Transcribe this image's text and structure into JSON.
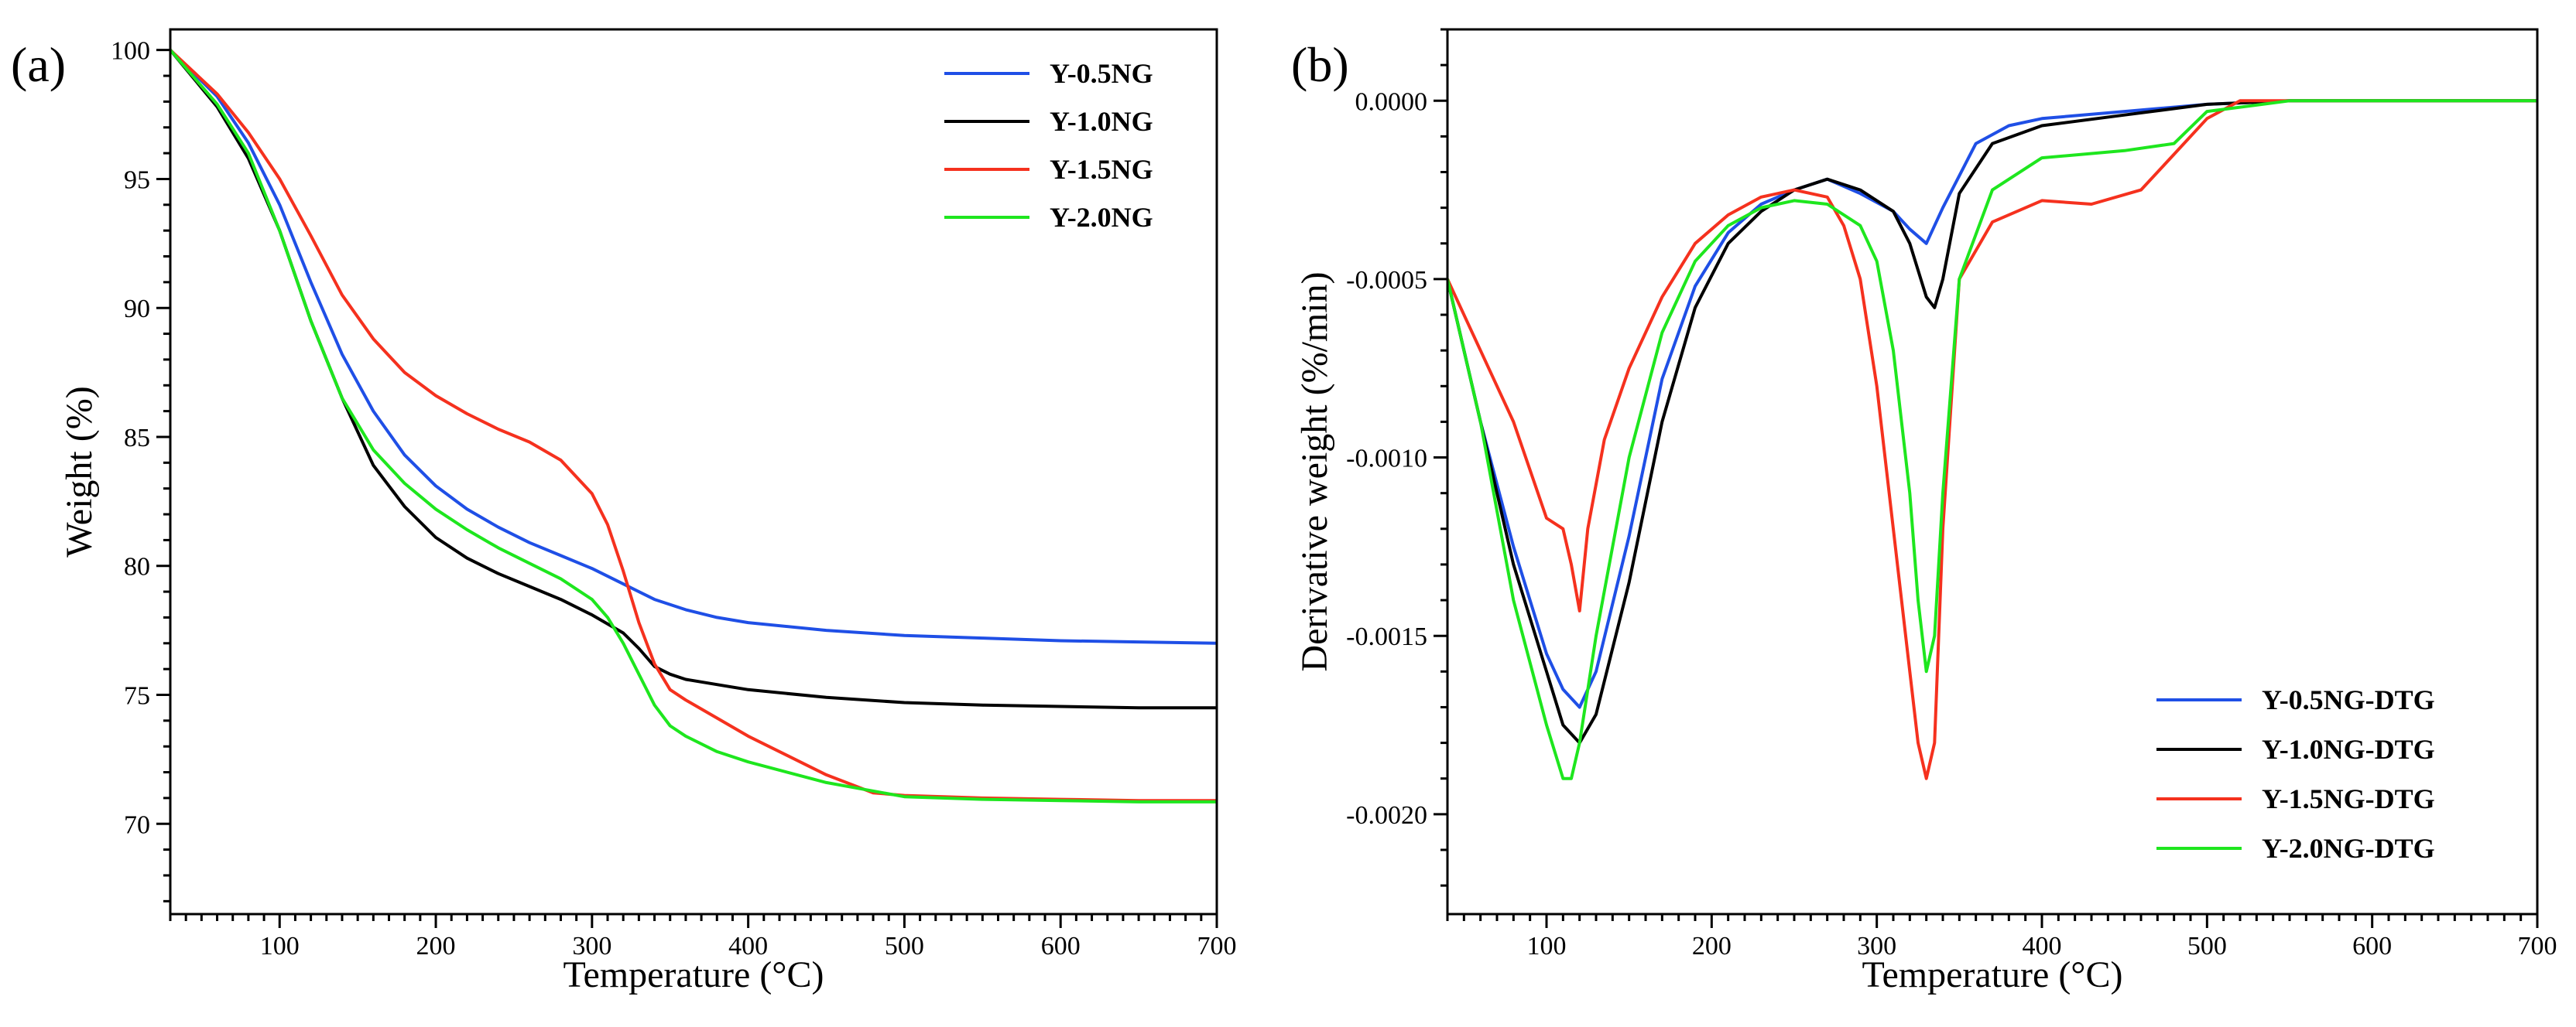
{
  "chart_data": [
    {
      "type": "line",
      "panel_label": "(a)",
      "xlabel": "Temperature (°C)",
      "ylabel": "Weight (%)",
      "xlim": [
        30,
        700
      ],
      "ylim": [
        66.5,
        100.8
      ],
      "xticks": [
        100,
        200,
        300,
        400,
        500,
        600,
        700
      ],
      "xtick_labels": [
        "100",
        "200",
        "300",
        "400",
        "500",
        "600",
        "700"
      ],
      "yticks": [
        70,
        75,
        80,
        85,
        90,
        95,
        100
      ],
      "ytick_labels": [
        "70",
        "75",
        "80",
        "85",
        "90",
        "95",
        "100"
      ],
      "legend_position": "top-right",
      "series": [
        {
          "name": "Y-0.5NG",
          "color": "#1f4fe6",
          "x": [
            30,
            60,
            80,
            100,
            120,
            140,
            160,
            180,
            200,
            220,
            240,
            260,
            280,
            300,
            320,
            340,
            360,
            380,
            400,
            450,
            500,
            550,
            600,
            650,
            700
          ],
          "y": [
            100,
            98.2,
            96.4,
            94.0,
            91.0,
            88.2,
            86.0,
            84.3,
            83.1,
            82.2,
            81.5,
            80.9,
            80.4,
            79.9,
            79.3,
            78.7,
            78.3,
            78.0,
            77.8,
            77.5,
            77.3,
            77.2,
            77.1,
            77.05,
            77.0
          ]
        },
        {
          "name": "Y-1.0NG",
          "color": "#000000",
          "x": [
            30,
            60,
            80,
            100,
            120,
            140,
            160,
            180,
            200,
            220,
            240,
            260,
            280,
            300,
            320,
            330,
            340,
            350,
            360,
            380,
            400,
            450,
            500,
            550,
            600,
            650,
            700
          ],
          "y": [
            100,
            97.8,
            95.8,
            93.0,
            89.5,
            86.5,
            83.9,
            82.3,
            81.1,
            80.3,
            79.7,
            79.2,
            78.7,
            78.1,
            77.4,
            76.8,
            76.1,
            75.8,
            75.6,
            75.4,
            75.2,
            74.9,
            74.7,
            74.6,
            74.55,
            74.5,
            74.5
          ]
        },
        {
          "name": "Y-1.5NG",
          "color": "#f5311e",
          "x": [
            30,
            60,
            80,
            100,
            120,
            140,
            160,
            180,
            200,
            220,
            240,
            260,
            280,
            300,
            310,
            320,
            330,
            340,
            350,
            360,
            380,
            400,
            420,
            450,
            480,
            500,
            550,
            600,
            650,
            700
          ],
          "y": [
            100,
            98.3,
            96.8,
            95.0,
            92.8,
            90.5,
            88.8,
            87.5,
            86.6,
            85.9,
            85.3,
            84.8,
            84.1,
            82.8,
            81.6,
            79.8,
            77.8,
            76.2,
            75.2,
            74.8,
            74.1,
            73.4,
            72.8,
            71.9,
            71.2,
            71.1,
            71.0,
            70.95,
            70.9,
            70.9
          ]
        },
        {
          "name": "Y-2.0NG",
          "color": "#1ee61e",
          "x": [
            30,
            60,
            80,
            100,
            120,
            140,
            160,
            180,
            200,
            220,
            240,
            260,
            280,
            300,
            310,
            320,
            330,
            340,
            350,
            360,
            380,
            400,
            450,
            500,
            550,
            600,
            650,
            700
          ],
          "y": [
            100,
            97.9,
            96.0,
            93.0,
            89.5,
            86.5,
            84.5,
            83.2,
            82.2,
            81.4,
            80.7,
            80.1,
            79.5,
            78.7,
            78.0,
            77.0,
            75.8,
            74.6,
            73.8,
            73.4,
            72.8,
            72.4,
            71.6,
            71.05,
            70.95,
            70.9,
            70.85,
            70.85
          ]
        }
      ]
    },
    {
      "type": "line",
      "panel_label": "(b)",
      "xlabel": "Temperature (°C)",
      "ylabel": "Derivative weight (%/min)",
      "xlim": [
        40,
        700
      ],
      "ylim": [
        -0.00228,
        0.0002
      ],
      "xticks": [
        100,
        200,
        300,
        400,
        500,
        600,
        700
      ],
      "xtick_labels": [
        "100",
        "200",
        "300",
        "400",
        "500",
        "600",
        "700"
      ],
      "yticks": [
        0,
        -0.0005,
        -0.001,
        -0.0015,
        -0.002
      ],
      "ytick_labels": [
        "0.0000",
        "-0.0005",
        "-0.0010",
        "-0.0015",
        "-0.0020"
      ],
      "legend_position": "bottom-right",
      "series": [
        {
          "name": "Y-0.5NG-DTG",
          "color": "#1f4fe6",
          "x": [
            40,
            60,
            80,
            100,
            110,
            120,
            130,
            150,
            170,
            190,
            210,
            230,
            250,
            270,
            290,
            310,
            320,
            330,
            340,
            360,
            380,
            400,
            450,
            500,
            550,
            600,
            650,
            700
          ],
          "y": [
            -0.0005,
            -0.0009,
            -0.00125,
            -0.00155,
            -0.00165,
            -0.0017,
            -0.0016,
            -0.00122,
            -0.00078,
            -0.00052,
            -0.00037,
            -0.00029,
            -0.00025,
            -0.00022,
            -0.00026,
            -0.00031,
            -0.00036,
            -0.0004,
            -0.0003,
            -0.00012,
            -7e-05,
            -5e-05,
            -3e-05,
            -1e-05,
            0.0,
            0.0,
            0.0,
            0.0
          ]
        },
        {
          "name": "Y-1.0NG-DTG",
          "color": "#000000",
          "x": [
            40,
            60,
            80,
            100,
            110,
            120,
            130,
            150,
            170,
            190,
            210,
            230,
            250,
            270,
            290,
            310,
            320,
            330,
            335,
            340,
            350,
            370,
            400,
            450,
            500,
            550,
            600,
            650,
            700
          ],
          "y": [
            -0.0005,
            -0.0009,
            -0.0013,
            -0.0016,
            -0.00175,
            -0.0018,
            -0.00172,
            -0.00135,
            -0.0009,
            -0.00058,
            -0.0004,
            -0.00031,
            -0.00025,
            -0.00022,
            -0.00025,
            -0.00031,
            -0.0004,
            -0.00055,
            -0.00058,
            -0.0005,
            -0.00026,
            -0.00012,
            -7e-05,
            -4e-05,
            -1e-05,
            0.0,
            0.0,
            0.0,
            0.0
          ]
        },
        {
          "name": "Y-1.5NG-DTG",
          "color": "#f5311e",
          "x": [
            40,
            60,
            80,
            100,
            110,
            115,
            120,
            125,
            135,
            150,
            170,
            190,
            210,
            230,
            250,
            270,
            280,
            290,
            300,
            310,
            320,
            325,
            330,
            335,
            340,
            350,
            370,
            400,
            430,
            460,
            480,
            500,
            520,
            550,
            600,
            650,
            700
          ],
          "y": [
            -0.0005,
            -0.0007,
            -0.0009,
            -0.00117,
            -0.0012,
            -0.0013,
            -0.00143,
            -0.0012,
            -0.00095,
            -0.00075,
            -0.00055,
            -0.0004,
            -0.00032,
            -0.00027,
            -0.00025,
            -0.00027,
            -0.00035,
            -0.0005,
            -0.0008,
            -0.0012,
            -0.0016,
            -0.0018,
            -0.0019,
            -0.0018,
            -0.0012,
            -0.0005,
            -0.00034,
            -0.00028,
            -0.00029,
            -0.00025,
            -0.00015,
            -5e-05,
            0.0,
            0.0,
            0.0,
            0.0,
            0.0
          ]
        },
        {
          "name": "Y-2.0NG-DTG",
          "color": "#1ee61e",
          "x": [
            40,
            60,
            80,
            100,
            110,
            115,
            120,
            130,
            150,
            170,
            190,
            210,
            230,
            250,
            270,
            290,
            300,
            310,
            320,
            325,
            330,
            335,
            340,
            350,
            370,
            400,
            450,
            480,
            500,
            550,
            600,
            650,
            700
          ],
          "y": [
            -0.0005,
            -0.0009,
            -0.0014,
            -0.00175,
            -0.0019,
            -0.0019,
            -0.0018,
            -0.0015,
            -0.001,
            -0.00065,
            -0.00045,
            -0.00035,
            -0.0003,
            -0.00028,
            -0.00029,
            -0.00035,
            -0.00045,
            -0.0007,
            -0.0011,
            -0.0014,
            -0.0016,
            -0.0015,
            -0.0011,
            -0.0005,
            -0.00025,
            -0.00016,
            -0.00014,
            -0.00012,
            -3e-05,
            0.0,
            0.0,
            0.0,
            0.0
          ]
        }
      ]
    }
  ]
}
